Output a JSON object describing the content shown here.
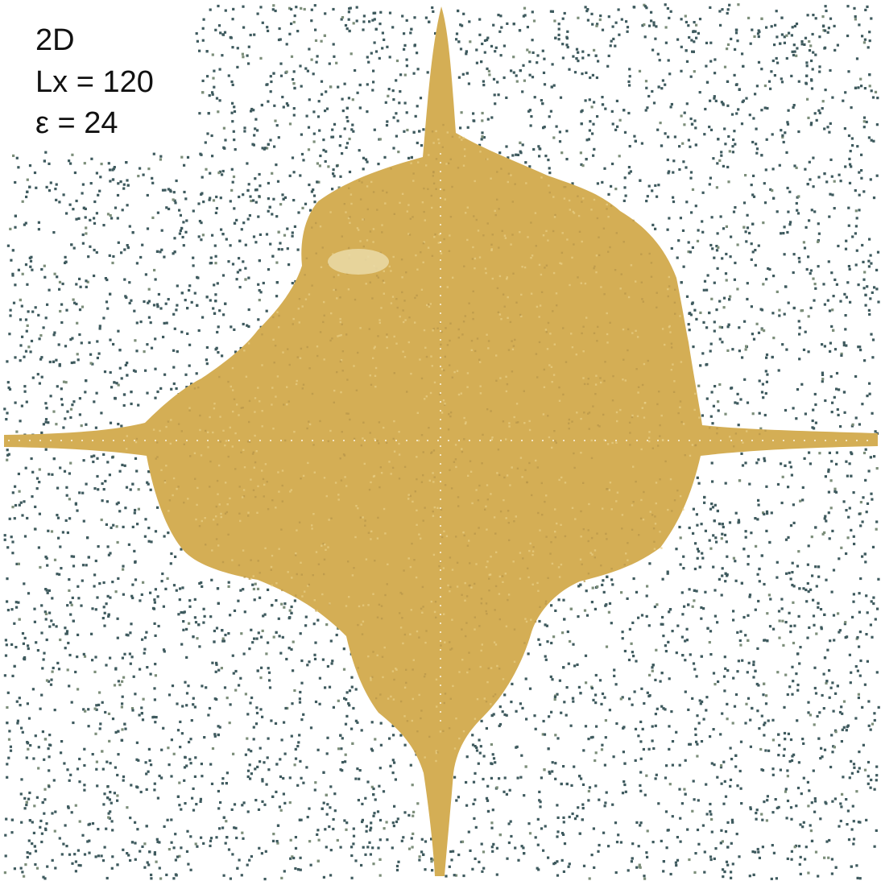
{
  "labels": {
    "dimension": "2D",
    "box_length": "Lx = 120",
    "epsilon": "ε = 24"
  },
  "colors": {
    "background": "#ffffff",
    "gas_particles": "#3e5a5e",
    "condensed_phase": "#d4ae55",
    "condensed_highlight": "#e8cf86",
    "fluctuation_particles": "#7c8e7a"
  }
}
